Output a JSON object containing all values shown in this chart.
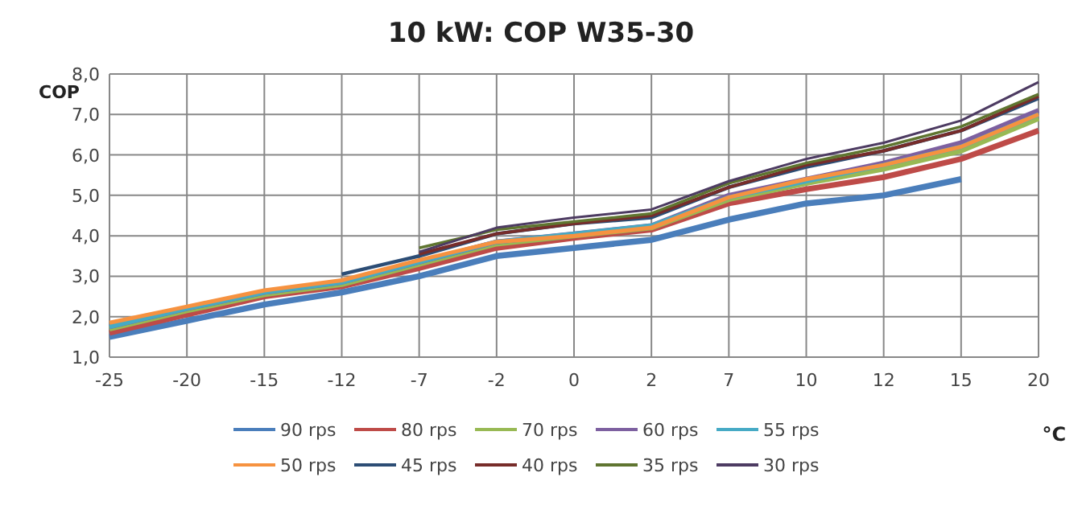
{
  "chart_data": {
    "type": "line",
    "title": "10 kW: COP W35-30",
    "ylabel": "COP",
    "xlabel": "°C",
    "categories": [
      "-25",
      "-20",
      "-15",
      "-12",
      "-7",
      "-2",
      "0",
      "2",
      "7",
      "10",
      "12",
      "15",
      "20"
    ],
    "ylim": [
      1,
      8
    ],
    "yticks": [
      {
        "value": 1,
        "label": "1,0"
      },
      {
        "value": 2,
        "label": "2,0"
      },
      {
        "value": 3,
        "label": "3,0"
      },
      {
        "value": 4,
        "label": "4,0"
      },
      {
        "value": 5,
        "label": "5,0"
      },
      {
        "value": 6,
        "label": "6,0"
      },
      {
        "value": 7,
        "label": "7,0"
      },
      {
        "value": 8,
        "label": "8,0"
      }
    ],
    "grid": true,
    "legend": "bottom",
    "marker": "none",
    "line_style": "solid",
    "series": [
      {
        "name": "90 rps",
        "color": "#4a7ebb",
        "values": [
          1.5,
          1.9,
          2.3,
          2.6,
          3.0,
          3.5,
          3.7,
          3.9,
          4.4,
          4.8,
          5.0,
          5.4,
          null
        ]
      },
      {
        "name": "80 rps",
        "color": "#be4b48",
        "values": [
          1.6,
          2.05,
          2.5,
          2.75,
          3.2,
          3.7,
          3.95,
          4.15,
          4.8,
          5.15,
          5.45,
          5.9,
          6.6
        ]
      },
      {
        "name": "70 rps",
        "color": "#98b954",
        "values": [
          1.7,
          2.15,
          2.55,
          2.8,
          3.3,
          3.8,
          4.0,
          4.2,
          4.9,
          5.3,
          5.65,
          6.1,
          6.9
        ]
      },
      {
        "name": "60 rps",
        "color": "#7d60a0",
        "values": [
          1.75,
          2.2,
          2.6,
          2.85,
          3.35,
          3.85,
          4.05,
          4.25,
          5.0,
          5.4,
          5.8,
          6.3,
          7.1
        ]
      },
      {
        "name": "55 rps",
        "color": "#46aac5",
        "values": [
          1.75,
          2.2,
          2.6,
          2.85,
          3.35,
          3.85,
          4.05,
          4.25,
          4.95,
          5.35,
          5.75,
          6.2,
          7.0
        ]
      },
      {
        "name": "50 rps",
        "color": "#f69240",
        "values": [
          1.85,
          2.25,
          2.65,
          2.9,
          3.4,
          3.85,
          4.0,
          4.2,
          4.95,
          5.4,
          5.75,
          6.2,
          7.0
        ]
      },
      {
        "name": "45 rps",
        "color": "#2c4d75",
        "values": [
          null,
          null,
          null,
          3.05,
          3.5,
          4.05,
          4.3,
          4.45,
          5.2,
          5.7,
          6.1,
          6.6,
          7.4
        ]
      },
      {
        "name": "40 rps",
        "color": "#772c2a",
        "values": [
          null,
          null,
          null,
          null,
          3.55,
          4.05,
          4.3,
          4.5,
          5.2,
          5.75,
          6.1,
          6.6,
          7.45
        ]
      },
      {
        "name": "35 rps",
        "color": "#5f7530",
        "values": [
          null,
          null,
          null,
          null,
          3.7,
          4.15,
          4.35,
          4.55,
          5.3,
          5.8,
          6.2,
          6.7,
          7.5
        ]
      },
      {
        "name": "30 rps",
        "color": "#4d3b62",
        "values": [
          null,
          null,
          null,
          null,
          3.6,
          4.2,
          4.45,
          4.65,
          5.35,
          5.9,
          6.3,
          6.85,
          7.8
        ]
      }
    ]
  }
}
